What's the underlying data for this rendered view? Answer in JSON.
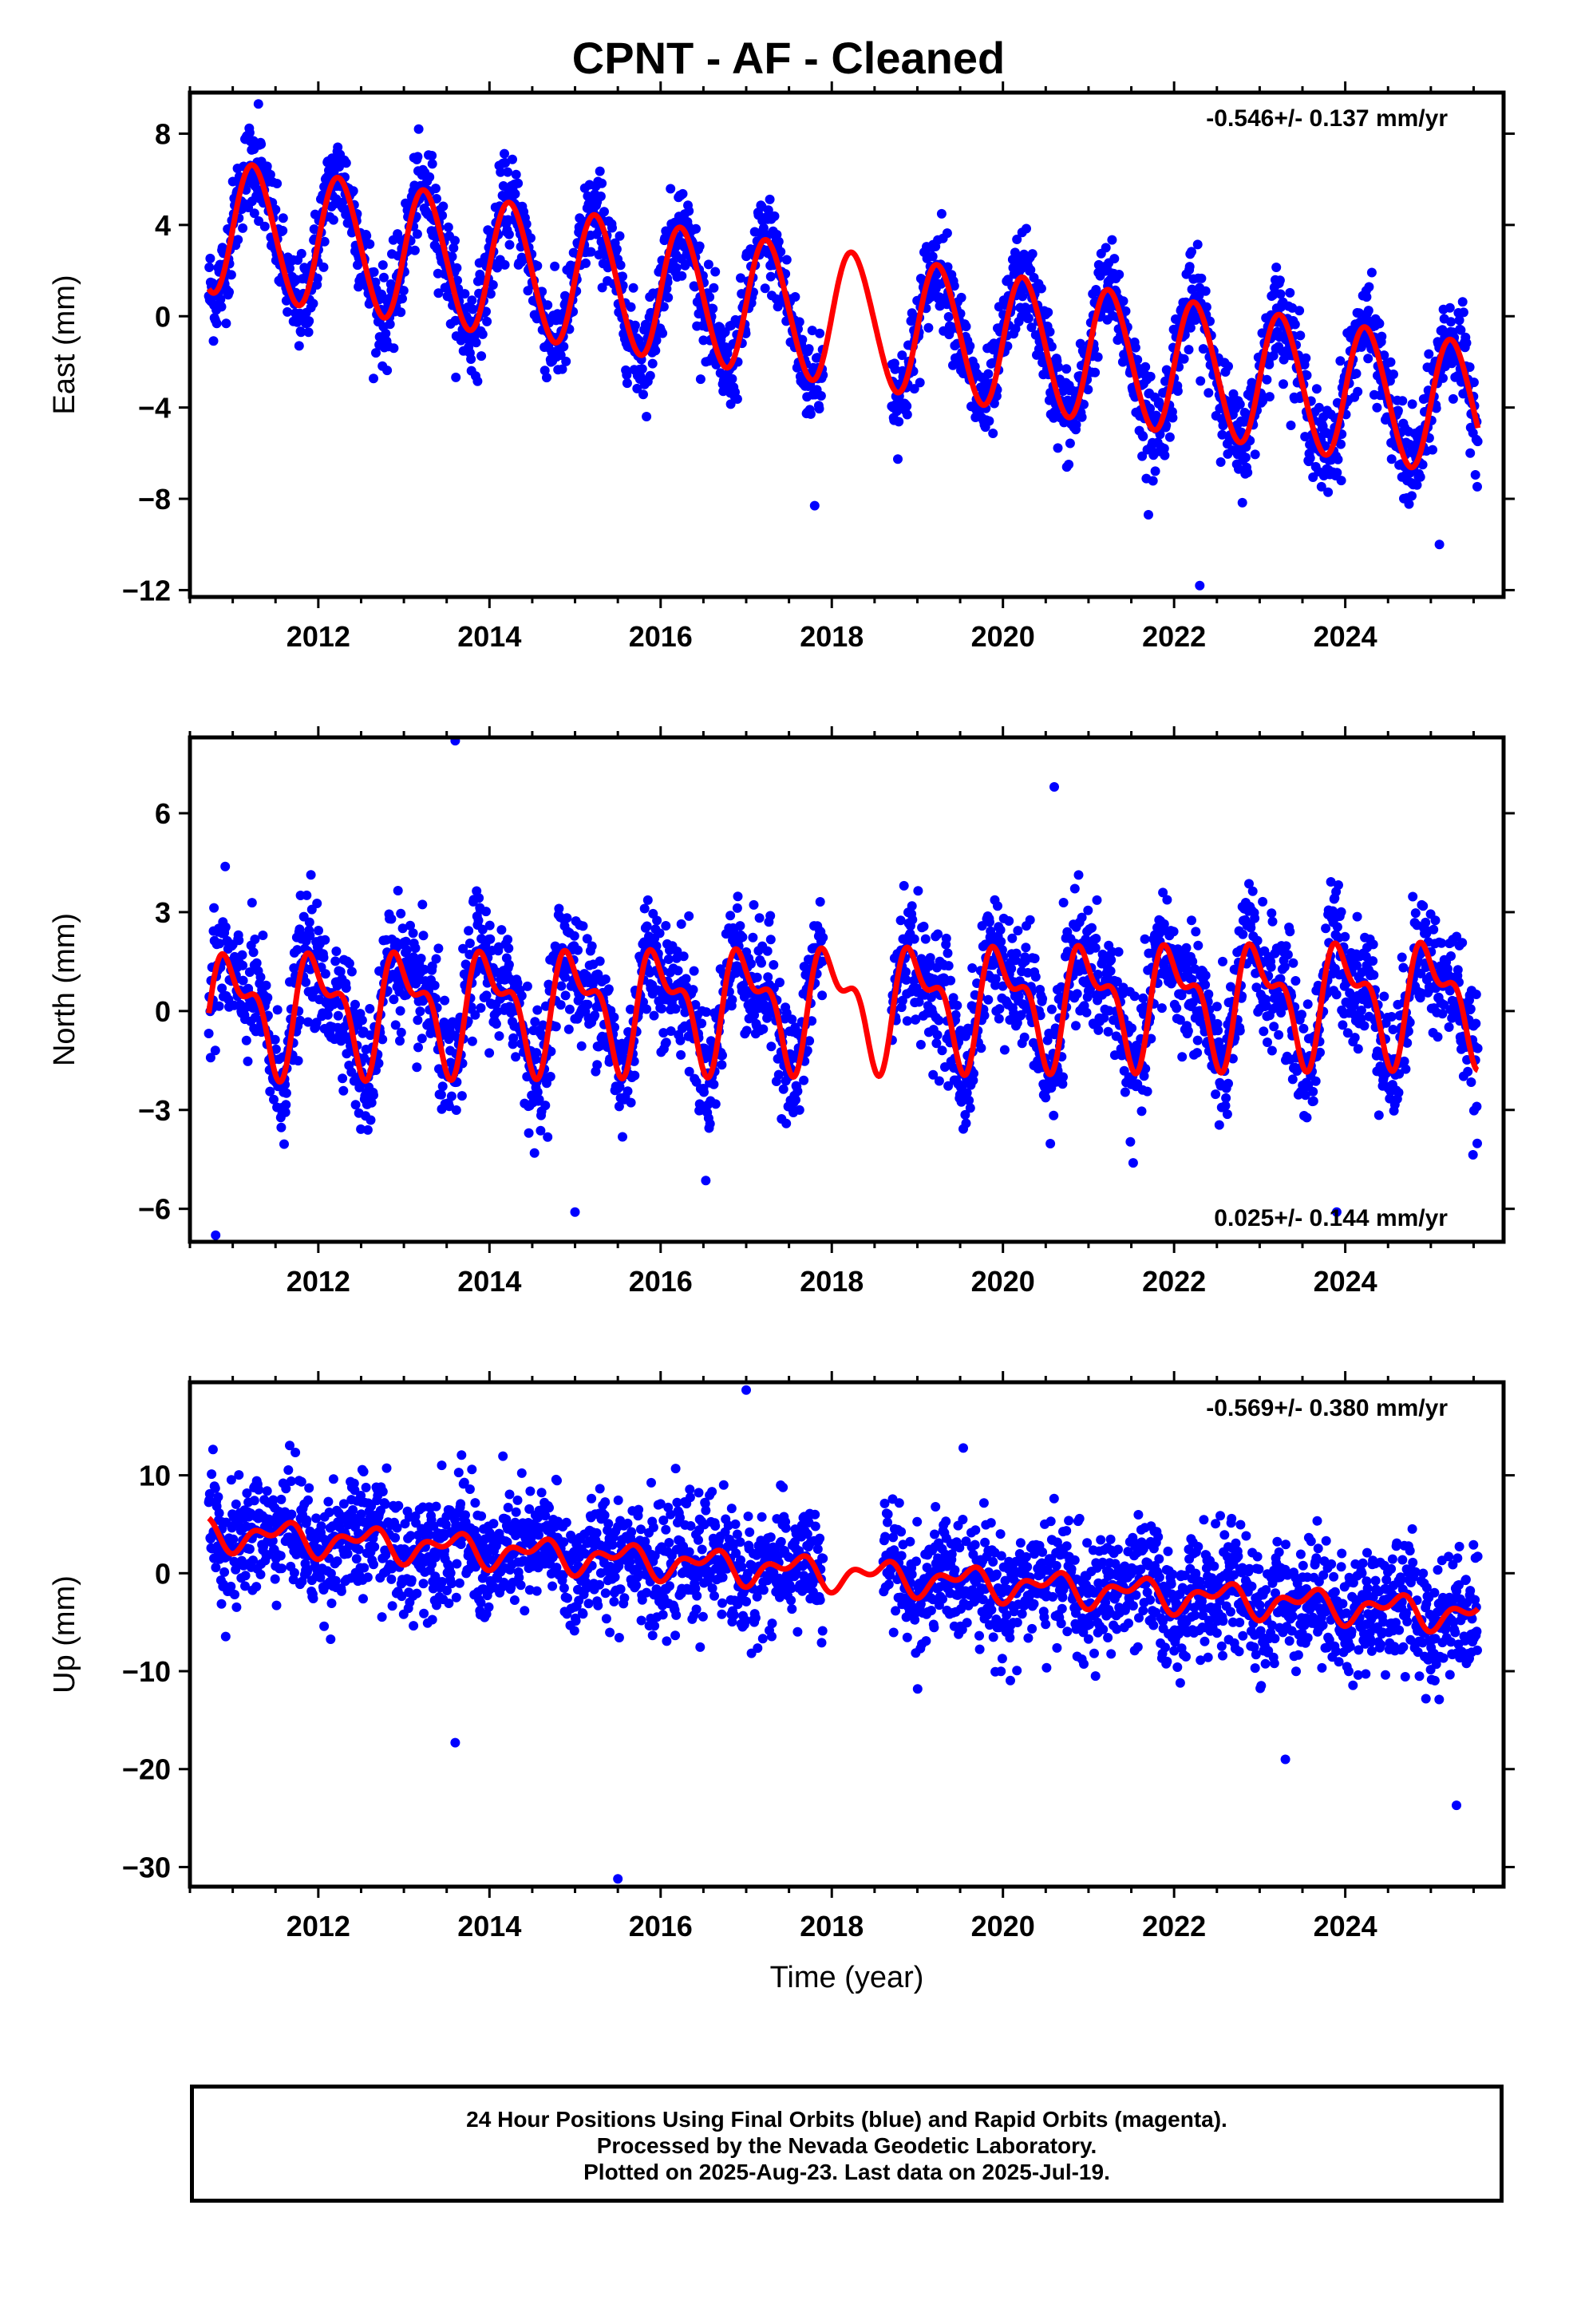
{
  "page": {
    "title": "CPNT  - AF - Cleaned",
    "footer": [
      "24 Hour Positions Using Final Orbits (blue) and Rapid Orbits (magenta).",
      "Processed by the Nevada Geodetic Laboratory.",
      "Plotted on 2025-Aug-23. Last data on 2025-Jul-19."
    ]
  },
  "colors": {
    "data_points": "#0000ff",
    "model_curve": "#ff0000",
    "axes": "#000000"
  },
  "chart_data": [
    {
      "type": "scatter",
      "name": "east",
      "ylabel": "East (mm)",
      "xlabel": "",
      "rate_label": "-0.546+/- 0.137 mm/yr",
      "rate_position": "top-right",
      "xlim": [
        2010.5,
        2025.85
      ],
      "ylim": [
        -12.3,
        9.8
      ],
      "xticks": [
        2012,
        2014,
        2016,
        2018,
        2020,
        2022,
        2024
      ],
      "yticks": [
        -12,
        -8,
        -4,
        0,
        4,
        8
      ],
      "data_gap": [
        2017.9,
        2018.7
      ],
      "model": {
        "offset": 0.0,
        "trend": -0.546,
        "annual": 2.9,
        "annual_phase": 0.0,
        "semiannual": 0.2,
        "semiannual_phase": 0.5,
        "ref_year": 2018.0
      },
      "scatter_std": 1.2,
      "outliers": [
        [
          2011.3,
          9.3
        ],
        [
          2022.3,
          -11.8
        ],
        [
          2017.8,
          -8.3
        ],
        [
          2021.7,
          -8.7
        ],
        [
          2025.1,
          -10.0
        ]
      ]
    },
    {
      "type": "scatter",
      "name": "north",
      "ylabel": "North (mm)",
      "xlabel": "",
      "rate_label": "0.025+/- 0.144 mm/yr",
      "rate_position": "bottom-right",
      "xlim": [
        2010.5,
        2025.85
      ],
      "ylim": [
        -7.0,
        8.3
      ],
      "xticks": [
        2012,
        2014,
        2016,
        2018,
        2020,
        2022,
        2024
      ],
      "yticks": [
        -6,
        -3,
        0,
        3,
        6
      ],
      "data_gap": [
        2017.9,
        2018.7
      ],
      "model": {
        "offset": 0.2,
        "trend": 0.025,
        "annual": 1.5,
        "annual_phase": 0.75,
        "semiannual": 0.8,
        "semiannual_phase": 0.2,
        "ref_year": 2018.0
      },
      "scatter_std": 1.1,
      "outliers": [
        [
          2013.6,
          8.2
        ],
        [
          2020.6,
          6.8
        ],
        [
          2010.8,
          -6.8
        ],
        [
          2015.0,
          -6.1
        ],
        [
          2023.9,
          -6.1
        ]
      ]
    },
    {
      "type": "scatter",
      "name": "up",
      "ylabel": "Up (mm)",
      "xlabel": "Time (year)",
      "rate_label": "-0.569+/- 0.380 mm/yr",
      "rate_position": "top-right",
      "xlim": [
        2010.5,
        2025.85
      ],
      "ylim": [
        -32.0,
        19.5
      ],
      "xticks": [
        2012,
        2014,
        2016,
        2018,
        2020,
        2022,
        2024
      ],
      "yticks": [
        -30,
        -20,
        -10,
        0,
        10
      ],
      "data_gap": [
        2017.9,
        2018.6
      ],
      "model": {
        "offset": 0.0,
        "trend": -0.569,
        "annual": 1.2,
        "annual_phase": 0.3,
        "semiannual": 0.9,
        "semiannual_phase": 0.1,
        "ref_year": 2018.0
      },
      "scatter_std": 3.6,
      "outliers": [
        [
          2017.0,
          18.7
        ],
        [
          2015.5,
          -31.2
        ],
        [
          2025.3,
          -23.7
        ],
        [
          2013.6,
          -17.3
        ],
        [
          2023.3,
          -19.0
        ]
      ]
    }
  ]
}
